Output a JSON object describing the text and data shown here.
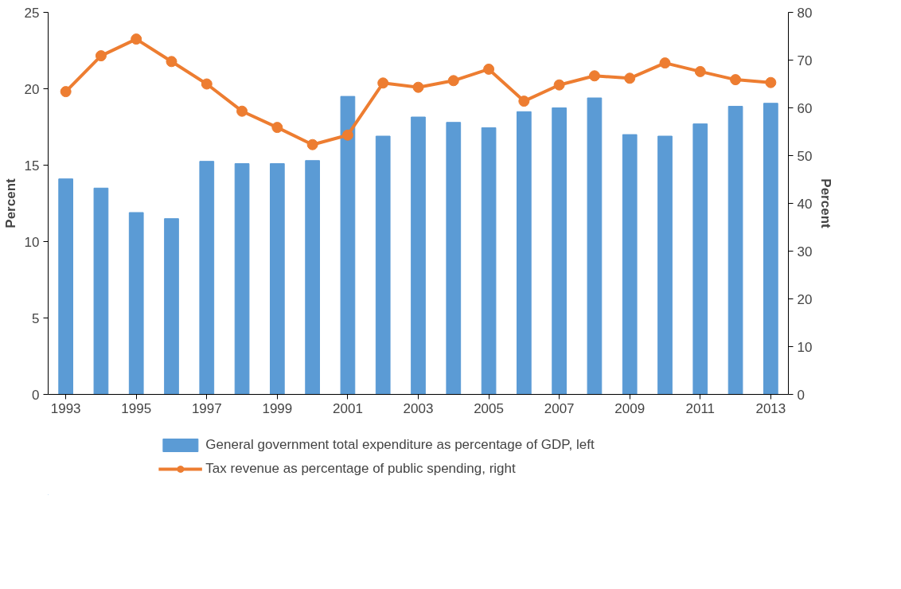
{
  "chart_data": {
    "type": "bar",
    "x": [
      1993,
      1994,
      1995,
      1996,
      1997,
      1998,
      1999,
      2000,
      2001,
      2002,
      2003,
      2004,
      2005,
      2006,
      2007,
      2008,
      2009,
      2010,
      2011,
      2012,
      2013
    ],
    "xlim": [
      1992.5,
      2013.5
    ],
    "xticks": [
      1993,
      1995,
      1997,
      1999,
      2001,
      2003,
      2005,
      2007,
      2009,
      2011,
      2013
    ],
    "ylabel": "Percent",
    "y2label": "Percent",
    "ylim": [
      0,
      25
    ],
    "yticks": [
      0,
      5,
      10,
      15,
      20,
      25
    ],
    "y2lim": [
      0,
      80
    ],
    "y2ticks": [
      0,
      10,
      20,
      30,
      40,
      50,
      60,
      70,
      80
    ],
    "grid": false,
    "legend": "bottom",
    "series": [
      {
        "name": "General government total expenditure as percentage of GDP, left",
        "type": "bar",
        "color": "#5b9bd5",
        "values": [
          14.1,
          13.5,
          11.9,
          11.5,
          15.25,
          15.1,
          15.1,
          15.3,
          19.5,
          16.9,
          18.15,
          17.8,
          17.45,
          18.5,
          18.75,
          19.4,
          17.0,
          16.9,
          17.7,
          18.85,
          19.05
        ]
      },
      {
        "name": "Tax revenue as percentage of public spending, right",
        "type": "line",
        "axis": "y2",
        "color": "#ed7d31",
        "marker": "circle",
        "line_style": "solid",
        "values": [
          63.4,
          70.9,
          74.4,
          69.7,
          65.0,
          59.3,
          55.9,
          52.3,
          54.3,
          65.2,
          64.3,
          65.7,
          68.1,
          61.4,
          64.8,
          66.7,
          66.2,
          69.4,
          67.6,
          65.9,
          65.3
        ]
      }
    ]
  }
}
